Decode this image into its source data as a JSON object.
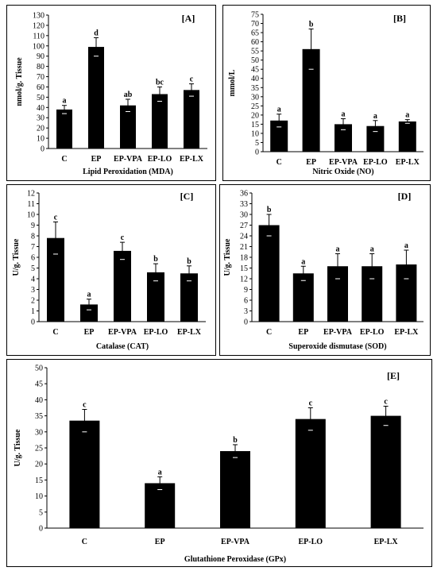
{
  "chart_data": [
    {
      "id": "A",
      "type": "bar",
      "panel_tag": "[A]",
      "ylabel": "nmol/g. Tissue",
      "xlabel": "Lipid Peroxidation (MDA)",
      "categories": [
        "C",
        "EP",
        "EP-VPA",
        "EP-LO",
        "EP-LX"
      ],
      "values": [
        38,
        99,
        42,
        53,
        57
      ],
      "errors": [
        4,
        9,
        6,
        7,
        6
      ],
      "significance": [
        "a",
        "d",
        "ab",
        "bc",
        "c"
      ],
      "ylim": [
        0,
        130
      ],
      "ytick_step": 10,
      "bar_color": "#000000",
      "grid": false,
      "legend": "none"
    },
    {
      "id": "B",
      "type": "bar",
      "panel_tag": "[B]",
      "ylabel": "mmol/L",
      "xlabel": "Nitric Oxide (NO)",
      "categories": [
        "C",
        "EP",
        "EP-VPA",
        "EP-LO",
        "EP-LX"
      ],
      "values": [
        17,
        56,
        15,
        14,
        16.5
      ],
      "errors": [
        3.5,
        11,
        3,
        3,
        1
      ],
      "significance": [
        "a",
        "b",
        "a",
        "a",
        "a"
      ],
      "ylim": [
        0,
        75
      ],
      "ytick_step": 5,
      "bar_color": "#000000",
      "grid": false,
      "legend": "none"
    },
    {
      "id": "C",
      "type": "bar",
      "panel_tag": "[C]",
      "ylabel": "U/g. Tissue",
      "xlabel": "Catalase (CAT)",
      "categories": [
        "C",
        "EP",
        "EP-VPA",
        "EP-LO",
        "EP-LX"
      ],
      "values": [
        7.8,
        1.6,
        6.6,
        4.6,
        4.5
      ],
      "errors": [
        1.5,
        0.5,
        0.8,
        0.8,
        0.7
      ],
      "significance": [
        "c",
        "a",
        "c",
        "b",
        "b"
      ],
      "ylim": [
        0,
        12
      ],
      "ytick_step": 1,
      "bar_color": "#000000",
      "grid": false,
      "legend": "none"
    },
    {
      "id": "D",
      "type": "bar",
      "panel_tag": "[D]",
      "ylabel": "U/g. Tissue",
      "xlabel": "Superoxide dismutase (SOD)",
      "categories": [
        "C",
        "EP",
        "EP-VPA",
        "EP-LO",
        "EP-LX"
      ],
      "values": [
        27,
        13.5,
        15.5,
        15.5,
        16
      ],
      "errors": [
        3,
        2,
        3.5,
        3.5,
        4
      ],
      "significance": [
        "b",
        "a",
        "a",
        "a",
        "a"
      ],
      "ylim": [
        0,
        36
      ],
      "ytick_step": 3,
      "bar_color": "#000000",
      "grid": false,
      "legend": "none"
    },
    {
      "id": "E",
      "type": "bar",
      "panel_tag": "[E]",
      "ylabel": "U/g. Tissue",
      "xlabel": "Glutathione Peroxidase (GPx)",
      "categories": [
        "C",
        "EP",
        "EP-VPA",
        "EP-LO",
        "EP-LX"
      ],
      "values": [
        33.5,
        14,
        24,
        34,
        35
      ],
      "errors": [
        3.5,
        2,
        2,
        3.5,
        3
      ],
      "significance": [
        "c",
        "a",
        "b",
        "c",
        "c"
      ],
      "ylim": [
        0,
        50
      ],
      "ytick_step": 5,
      "bar_color": "#000000",
      "grid": false,
      "legend": "none"
    }
  ]
}
